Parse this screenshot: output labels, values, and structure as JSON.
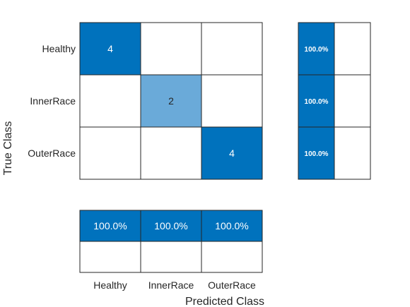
{
  "chart_data": {
    "type": "heatmap",
    "xlabel": "Predicted Class",
    "ylabel": "True Class",
    "classes": [
      "Healthy",
      "InnerRace",
      "OuterRace"
    ],
    "matrix": [
      [
        4,
        null,
        null
      ],
      [
        null,
        2,
        null
      ],
      [
        null,
        null,
        4
      ]
    ],
    "row_summary": {
      "correct": [
        "100.0%",
        "100.0%",
        "100.0%"
      ],
      "incorrect": [
        "",
        "",
        ""
      ]
    },
    "column_summary": {
      "correct": [
        "100.0%",
        "100.0%",
        "100.0%"
      ],
      "incorrect": [
        "",
        "",
        ""
      ]
    },
    "colors": {
      "strong": "#0072bd",
      "light": "#6aaad9",
      "empty": "#ffffff",
      "grid": "#262626",
      "text_dark": "#262626",
      "text_light": "#ffffff"
    }
  }
}
